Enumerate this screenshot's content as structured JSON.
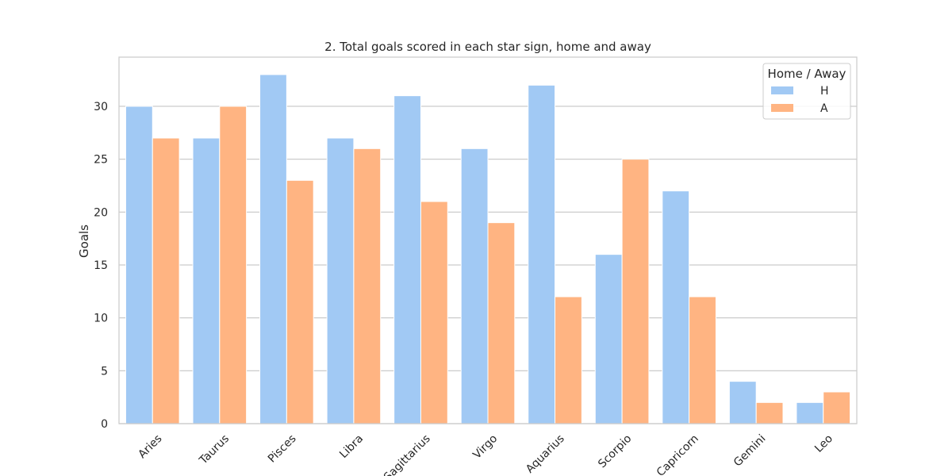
{
  "chart_data": {
    "type": "bar",
    "title": "2. Total goals scored in each star sign, home and away",
    "xlabel": "",
    "ylabel": "Goals",
    "categories": [
      "Aries",
      "Taurus",
      "Pisces",
      "Libra",
      "Sagittarius",
      "Virgo",
      "Aquarius",
      "Scorpio",
      "Capricorn",
      "Gemini",
      "Leo"
    ],
    "series": [
      {
        "name": "H",
        "color": "#a1c9f4",
        "values": [
          30,
          27,
          33,
          27,
          31,
          26,
          32,
          16,
          22,
          4,
          2
        ]
      },
      {
        "name": "A",
        "color": "#ffb482",
        "values": [
          27,
          30,
          23,
          26,
          21,
          19,
          12,
          25,
          12,
          2,
          3
        ]
      }
    ],
    "ylim": [
      0,
      34.65
    ],
    "yticks": [
      0,
      5,
      10,
      15,
      20,
      25,
      30
    ],
    "grid": true,
    "legend": {
      "title": "Home / Away",
      "placement": "top-right"
    }
  }
}
